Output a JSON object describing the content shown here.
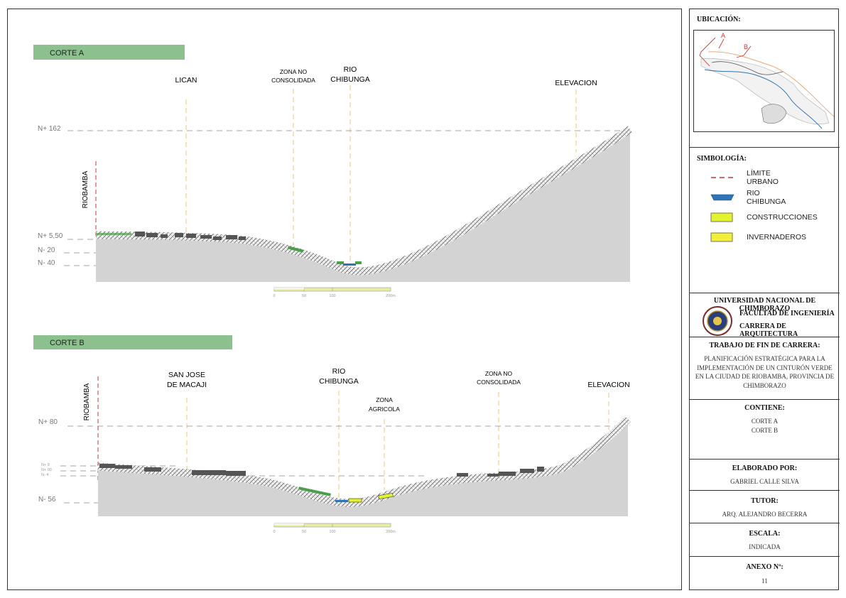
{
  "sections": [
    {
      "banner": "CORTE A",
      "labels": {
        "licán": "LICAN",
        "zona_no_1": "ZONA NO",
        "zona_no_2": "CONSOLIDADA",
        "rio_1": "RIO",
        "rio_2": "CHIBUNGA",
        "elevacion": "ELEVACION",
        "city": "RIOBAMBA"
      },
      "levels": [
        "N+ 162",
        "N+ 5,50",
        "N- 20",
        "N- 40"
      ],
      "scale": [
        "0",
        "50",
        "100",
        "200m"
      ]
    },
    {
      "banner": "CORTE B",
      "labels": {
        "sanjose_1": "SAN JOSE",
        "sanjose_2": "DE MACAJI",
        "rio_1": "RIO",
        "rio_2": "CHIBUNGA",
        "zona_agricola_1": "ZONA",
        "zona_agricola_2": "AGRICOLA",
        "zona_no_1": "ZONA NO",
        "zona_no_2": "CONSOLIDADA",
        "elevacion": "ELEVACION",
        "city": "RIOBAMBA"
      },
      "levels": [
        "N+ 80",
        "N+ 9",
        "N+ 00",
        "N- 4",
        "N- 56"
      ],
      "scale": [
        "0",
        "50",
        "100",
        "200m"
      ]
    }
  ],
  "sidebar": {
    "ubicacion_title": "UBICACIÓN:",
    "map_marks": {
      "a": "A",
      "b": "B"
    },
    "simbologia_title": "SIMBOLOGÍA:",
    "legend": [
      {
        "label": "LÍMITE URBANO",
        "icon": "dashed-red-line",
        "color": "#cc3333"
      },
      {
        "label": "RIO CHIBUNGA",
        "icon": "blue-river-swatch",
        "color": "#2f74b5"
      },
      {
        "label": "CONSTRUCCIONES",
        "icon": "lime-swatch",
        "color": "#e3f22e"
      },
      {
        "label": "INVERNADEROS",
        "icon": "yellow-swatch",
        "color": "#f1ef3a"
      }
    ],
    "university": "UNIVERSIDAD NACIONAL DE CHIMBORAZO",
    "faculty": "FACULTAD DE INGENIERÍA",
    "career": "CARRERA DE ARQUITECTURA",
    "trabajo_title": "TRABAJO DE FIN DE CARRERA:",
    "trabajo_lines": [
      "PLANIFICACIÓN ESTRATÉGICA PARA LA",
      "IMPLEMENTACIÓN DE UN CINTURÓN VERDE",
      "EN LA CIUDAD DE RIOBAMBA, PROVINCIA DE",
      "CHIMBORAZO"
    ],
    "contiene_title": "CONTIENE:",
    "contiene_items": [
      "CORTE A",
      "CORTE B"
    ],
    "elaborado_title": "ELABORADO POR:",
    "elaborado": "GABRIEL CALLE SILVA",
    "tutor_title": "TUTOR:",
    "tutor": "ARQ. ALEJANDRO BECERRA",
    "escala_title": "ESCALA:",
    "escala": "INDICADA",
    "anexo_title": "ANEXO Nº:",
    "anexo": "11"
  },
  "colors": {
    "banner": "#8cc08f",
    "terrain": "#d3d3d3",
    "guide": "#e8c87a",
    "dashed_red": "#cc3333",
    "river": "#2f74b5",
    "green_strip": "#4aa04a",
    "building": "#555555"
  }
}
